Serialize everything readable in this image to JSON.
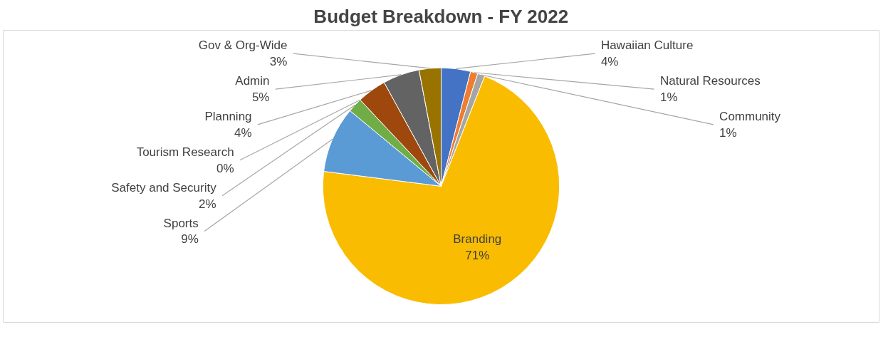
{
  "chart_data": {
    "type": "pie",
    "title": "Budget Breakdown - FY 2022",
    "categories": [
      "Hawaiian Culture",
      "Natural Resources",
      "Community",
      "Branding",
      "Sports",
      "Safety and Security",
      "Tourism Research",
      "Planning",
      "Admin",
      "Gov & Org-Wide"
    ],
    "values": [
      4,
      1,
      1,
      71,
      9,
      2,
      0,
      4,
      5,
      3
    ],
    "value_labels": [
      "4%",
      "1%",
      "1%",
      "71%",
      "9%",
      "2%",
      "0%",
      "4%",
      "5%",
      "3%"
    ],
    "colors": [
      "#4472c4",
      "#ed7d31",
      "#a5a5a5",
      "#f9bc00",
      "#5b9bd5",
      "#70ad47",
      "#264478",
      "#9e480e",
      "#636363",
      "#997300"
    ]
  }
}
